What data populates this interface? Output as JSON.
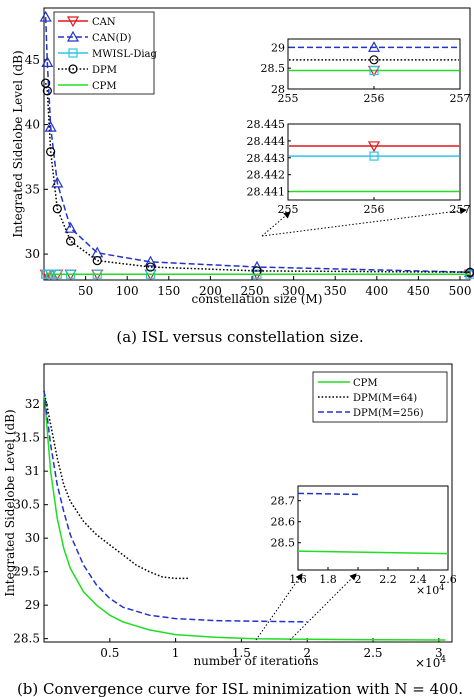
{
  "captions": {
    "a": "(a) ISL versus constellation size.",
    "b": "(b) Convergence curve for ISL minimization with N = 400."
  },
  "chart_data": [
    {
      "type": "line",
      "xlabel": "constellation size (M)",
      "ylabel": "Integrated Sidelobe Level (dB)",
      "xlim": [
        0,
        512
      ],
      "ylim": [
        28,
        49
      ],
      "xticks": [
        50,
        100,
        150,
        200,
        250,
        300,
        350,
        400,
        450,
        500
      ],
      "yticks": [
        30,
        35,
        40,
        45
      ],
      "grid": false,
      "legend_position": "top-left",
      "x": [
        2,
        4,
        8,
        16,
        32,
        64,
        128,
        256,
        512
      ],
      "series": [
        {
          "name": "CAN",
          "color": "#e0181b",
          "dash": "solid",
          "marker": "triangle-down",
          "values": [
            28.444,
            28.444,
            28.444,
            28.444,
            28.444,
            28.444,
            28.444,
            28.444,
            28.444
          ]
        },
        {
          "name": "CAN(D)",
          "color": "#2233cc",
          "dash": "dashed",
          "marker": "triangle-up",
          "values": [
            48.3,
            44.8,
            39.8,
            35.5,
            32.0,
            30.1,
            29.4,
            29.0,
            28.6
          ]
        },
        {
          "name": "MWISL-Diag",
          "color": "#2ec4e8",
          "dash": "solid",
          "marker": "square",
          "values": [
            28.443,
            28.443,
            28.443,
            28.443,
            28.443,
            28.443,
            28.443,
            28.443,
            28.443
          ]
        },
        {
          "name": "DPM",
          "color": "#000000",
          "dash": "dotted",
          "marker": "circle",
          "values": [
            43.2,
            42.6,
            37.9,
            33.5,
            31.0,
            29.5,
            29.0,
            28.7,
            28.6
          ]
        },
        {
          "name": "CPM",
          "color": "#22dd22",
          "dash": "solid",
          "marker": "none",
          "values": [
            28.441,
            28.441,
            28.441,
            28.441,
            28.441,
            28.441,
            28.441,
            28.441,
            28.441
          ]
        }
      ],
      "insets": [
        {
          "xlim": [
            255,
            257
          ],
          "ylim": [
            28,
            29.2
          ],
          "xticks": [
            "255",
            "256",
            "257"
          ],
          "yticks": [
            "28",
            "28.5",
            "29"
          ]
        },
        {
          "xlim": [
            255,
            257
          ],
          "ylim": [
            28.4405,
            28.445
          ],
          "xticks": [
            "255",
            "256",
            "257"
          ],
          "yticks": [
            "28.441",
            "28.442",
            "28.443",
            "28.444",
            "28.445"
          ]
        }
      ]
    },
    {
      "type": "line",
      "xlabel": "number of iterations",
      "ylabel": "Integrated Sidelobe Level (dB)",
      "x_multiplier": "×10",
      "x_multiplier_exp": "4",
      "xlim": [
        0,
        3.1
      ],
      "ylim": [
        28.45,
        32.6
      ],
      "xticks": [
        "0.5",
        "1",
        "1.5",
        "2",
        "2.5",
        "3"
      ],
      "yticks": [
        "28.5",
        "29",
        "29.5",
        "30",
        "30.5",
        "31",
        "31.5",
        "32"
      ],
      "grid": false,
      "legend_position": "top-right",
      "series": [
        {
          "name": "CPM",
          "color": "#22dd22",
          "dash": "solid",
          "x": [
            0,
            0.05,
            0.1,
            0.15,
            0.2,
            0.3,
            0.4,
            0.5,
            0.6,
            0.8,
            1.0,
            1.3,
            1.6,
            2.0,
            2.5,
            3.05
          ],
          "y": [
            32.2,
            31.0,
            30.3,
            29.85,
            29.55,
            29.2,
            29.0,
            28.85,
            28.75,
            28.63,
            28.56,
            28.52,
            28.5,
            28.49,
            28.485,
            28.48
          ]
        },
        {
          "name": "DPM(M=64)",
          "color": "#000000",
          "dash": "dotted",
          "x": [
            0,
            0.05,
            0.1,
            0.15,
            0.2,
            0.3,
            0.4,
            0.5,
            0.6,
            0.7,
            0.8,
            0.9,
            1.0,
            1.1
          ],
          "y": [
            32.2,
            31.7,
            31.2,
            30.8,
            30.55,
            30.25,
            30.05,
            29.9,
            29.75,
            29.6,
            29.5,
            29.42,
            29.4,
            29.4
          ]
        },
        {
          "name": "DPM(M=256)",
          "color": "#2233cc",
          "dash": "dashed",
          "x": [
            0,
            0.05,
            0.1,
            0.15,
            0.2,
            0.3,
            0.4,
            0.5,
            0.6,
            0.8,
            1.0,
            1.3,
            1.6,
            2.0
          ],
          "y": [
            32.2,
            31.4,
            30.8,
            30.4,
            30.05,
            29.6,
            29.3,
            29.1,
            28.97,
            28.85,
            28.8,
            28.77,
            28.76,
            28.75
          ]
        }
      ],
      "inset": {
        "xlim": [
          1.6,
          2.6
        ],
        "ylim": [
          28.37,
          28.77
        ],
        "xticks": [
          "1.6",
          "1.8",
          "2",
          "2.2",
          "2.4",
          "2.6"
        ],
        "yticks": [
          "28.5",
          "28.6",
          "28.7"
        ],
        "x_multiplier": "×10",
        "x_multiplier_exp": "4"
      }
    }
  ]
}
